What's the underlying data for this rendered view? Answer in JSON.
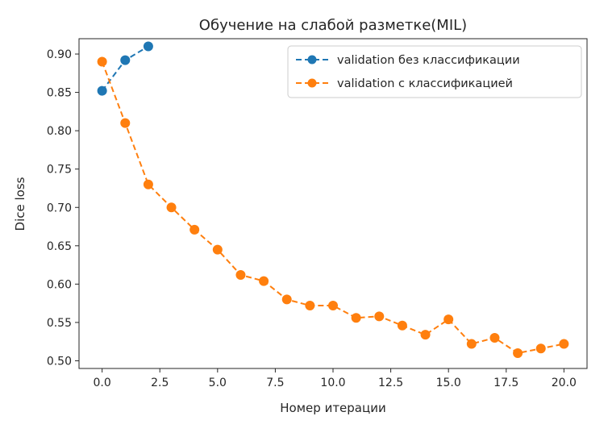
{
  "chart_data": {
    "type": "line",
    "title": "Обучение на слабой разметке(MIL)",
    "xlabel": "Номер итерации",
    "ylabel": "Dice loss",
    "xlim": [
      -1.0,
      21.0
    ],
    "ylim": [
      0.49,
      0.92
    ],
    "x_ticks": [
      0.0,
      2.5,
      5.0,
      7.5,
      10.0,
      12.5,
      15.0,
      17.5,
      20.0
    ],
    "x_tick_labels": [
      "0.0",
      "2.5",
      "5.0",
      "7.5",
      "10.0",
      "12.5",
      "15.0",
      "17.5",
      "20.0"
    ],
    "y_ticks": [
      0.5,
      0.55,
      0.6,
      0.65,
      0.7,
      0.75,
      0.8,
      0.85,
      0.9
    ],
    "y_tick_labels": [
      "0.50",
      "0.55",
      "0.60",
      "0.65",
      "0.70",
      "0.75",
      "0.80",
      "0.85",
      "0.90"
    ],
    "grid": false,
    "legend_position": "upper right",
    "series": [
      {
        "name": "validation без классификации",
        "color": "#1f77b4",
        "linestyle": "dashed",
        "marker": "circle",
        "x": [
          0,
          1,
          2
        ],
        "y": [
          0.852,
          0.892,
          0.91
        ]
      },
      {
        "name": "validation с классификацией",
        "color": "#ff7f0e",
        "linestyle": "dashed",
        "marker": "circle",
        "x": [
          0,
          1,
          2,
          3,
          4,
          5,
          6,
          7,
          8,
          9,
          10,
          11,
          12,
          13,
          14,
          15,
          16,
          17,
          18,
          19,
          20
        ],
        "y": [
          0.89,
          0.81,
          0.73,
          0.7,
          0.671,
          0.645,
          0.612,
          0.604,
          0.58,
          0.572,
          0.572,
          0.556,
          0.558,
          0.546,
          0.534,
          0.554,
          0.522,
          0.53,
          0.51,
          0.516,
          0.522
        ]
      }
    ]
  }
}
